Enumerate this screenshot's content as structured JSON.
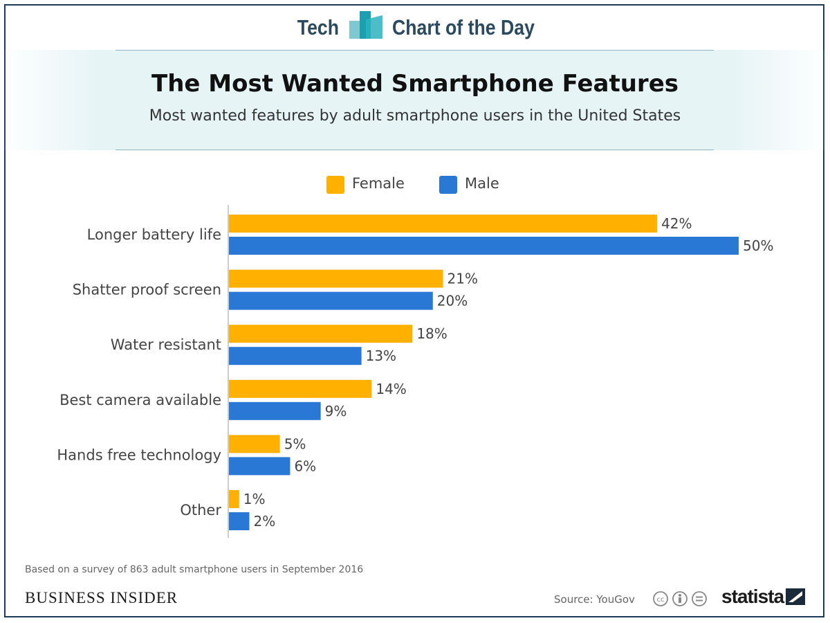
{
  "header": {
    "brand_left": "Tech",
    "brand_right": "Chart of the Day",
    "title": "The Most Wanted Smartphone Features",
    "subtitle": "Most wanted features by adult smartphone users in the United States"
  },
  "footer": {
    "note": "Based on a survey of 863 adult smartphone users in September 2016",
    "publisher": "BUSINESS INSIDER",
    "source": "Source: YouGov",
    "statista": "statista"
  },
  "colors": {
    "female": "#ffb000",
    "male": "#2a78d6",
    "axis": "#cccccc",
    "text": "#444444"
  },
  "chart_data": {
    "type": "bar",
    "orientation": "horizontal",
    "categories": [
      "Longer battery life",
      "Shatter proof screen",
      "Water resistant",
      "Best camera available",
      "Hands free technology",
      "Other"
    ],
    "series": [
      {
        "name": "Female",
        "values": [
          42,
          21,
          18,
          14,
          5,
          1
        ]
      },
      {
        "name": "Male",
        "values": [
          50,
          20,
          13,
          9,
          6,
          2
        ]
      }
    ],
    "value_suffix": "%",
    "xlim": [
      0,
      50
    ],
    "legend": "top-center",
    "grid": false
  }
}
